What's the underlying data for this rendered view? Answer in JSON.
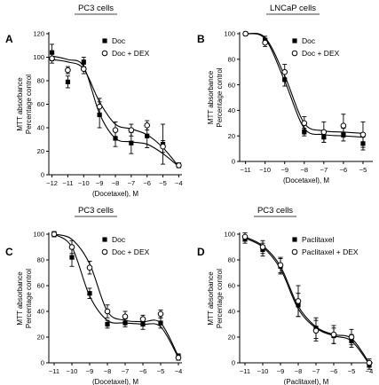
{
  "chart_data": [
    {
      "type": "scatter",
      "panel": "A",
      "title": "PC3 cells",
      "xlabel": "(Docetaxel), M",
      "ylabel_lines": [
        "MTT absorbance",
        "Percentage control"
      ],
      "x_ticks": [
        -12,
        -11,
        -10,
        -9,
        -8,
        -7,
        -6,
        -5,
        -4
      ],
      "y_ticks": [
        0,
        20,
        40,
        60,
        80,
        100,
        120
      ],
      "xlim": [
        -12.2,
        -3.8
      ],
      "ylim": [
        0,
        120
      ],
      "legend_position": "top-right",
      "series": [
        {
          "name": "Doc",
          "marker": "filled-square",
          "x": [
            -12,
            -11,
            -10,
            -9,
            -8,
            -7,
            -6,
            -5,
            -4
          ],
          "y": [
            104,
            79,
            96,
            51,
            31,
            27,
            33,
            26,
            8
          ],
          "err": [
            7,
            5,
            4,
            11,
            7,
            9,
            10,
            17,
            2
          ],
          "fit": [
            101,
            98,
            92,
            52,
            31,
            28,
            26,
            18,
            7
          ]
        },
        {
          "name": "Doc + DEX",
          "marker": "open-circle",
          "x": [
            -12,
            -11,
            -10,
            -9,
            -8,
            -7,
            -6,
            -5,
            -4
          ],
          "y": [
            99,
            89,
            90,
            58,
            38,
            38,
            42,
            24,
            8
          ],
          "err": [
            4,
            3,
            4,
            7,
            7,
            5,
            4,
            5,
            2
          ],
          "fit": [
            98,
            96,
            90,
            62,
            43,
            39,
            34,
            23,
            7
          ]
        }
      ]
    },
    {
      "type": "scatter",
      "panel": "B",
      "title": "LNCaP cells",
      "xlabel": "(Docetaxel), M",
      "ylabel_lines": [
        "MTT absorbance",
        "Percentage control"
      ],
      "x_ticks": [
        -11,
        -10,
        -9,
        -8,
        -7,
        -6,
        -5
      ],
      "y_ticks": [
        0,
        20,
        40,
        60,
        80,
        100
      ],
      "xlim": [
        -11.3,
        -4.5
      ],
      "ylim": [
        0,
        100
      ],
      "legend_position": "top-right",
      "series": [
        {
          "name": "Doc",
          "marker": "filled-square",
          "x": [
            -11,
            -10,
            -9,
            -8,
            -7,
            -6,
            -5
          ],
          "y": [
            100,
            95,
            64,
            23,
            19,
            21,
            14
          ],
          "err": [
            1,
            3,
            5,
            3,
            4,
            5,
            5
          ],
          "fit": [
            100,
            96,
            63,
            26,
            21,
            20,
            19
          ]
        },
        {
          "name": "Doc + DEX",
          "marker": "open-circle",
          "x": [
            -11,
            -10,
            -9,
            -8,
            -7,
            -6,
            -5
          ],
          "y": [
            100,
            93,
            70,
            30,
            23,
            28,
            21
          ],
          "err": [
            1,
            3,
            6,
            5,
            8,
            9,
            10
          ],
          "fit": [
            100,
            97,
            67,
            30,
            24,
            23,
            22
          ]
        }
      ]
    },
    {
      "type": "scatter",
      "panel": "C",
      "title": "PC3 cells",
      "xlabel": "(Docetaxel), M",
      "ylabel_lines": [
        "MTT absorbance",
        "Percentage control"
      ],
      "x_ticks": [
        -11,
        -10,
        -9,
        -8,
        -7,
        -6,
        -5,
        -4
      ],
      "y_ticks": [
        0,
        20,
        40,
        60,
        80,
        100
      ],
      "xlim": [
        -11.3,
        -3.8
      ],
      "ylim": [
        0,
        100
      ],
      "legend_position": "top-right",
      "series": [
        {
          "name": "Doc",
          "marker": "filled-square",
          "x": [
            -11,
            -10,
            -9,
            -8,
            -7,
            -6,
            -5,
            -4
          ],
          "y": [
            100,
            82,
            54,
            30,
            31,
            30,
            31,
            5
          ],
          "err": [
            2,
            7,
            4,
            3,
            3,
            4,
            4,
            2
          ],
          "fit": [
            100,
            90,
            52,
            33,
            31,
            30,
            28,
            4
          ]
        },
        {
          "name": "Doc + DEX",
          "marker": "open-circle",
          "x": [
            -11,
            -10,
            -9,
            -8,
            -7,
            -6,
            -5,
            -4
          ],
          "y": [
            100,
            90,
            74,
            40,
            36,
            34,
            38,
            4
          ],
          "err": [
            2,
            5,
            5,
            5,
            4,
            3,
            3,
            2
          ],
          "fit": [
            100,
            96,
            77,
            40,
            33,
            32,
            31,
            5
          ]
        }
      ]
    },
    {
      "type": "scatter",
      "panel": "D",
      "title": "PC3 cells",
      "xlabel": "(Paclitaxel), M",
      "ylabel_lines": [
        "MTT absorbance",
        "Percentage control"
      ],
      "x_ticks": [
        -11,
        -10,
        -9,
        -8,
        -7,
        -6,
        -5,
        -4
      ],
      "y_ticks": [
        0,
        20,
        40,
        60,
        80,
        100
      ],
      "xlim": [
        -11.3,
        -3.8
      ],
      "ylim": [
        0,
        100
      ],
      "legend_position": "top-right",
      "series": [
        {
          "name": "Paclitaxel",
          "marker": "filled-square",
          "x": [
            -11,
            -10,
            -9,
            -8,
            -7,
            -6,
            -5,
            -4
          ],
          "y": [
            96,
            88,
            75,
            45,
            27,
            21,
            17,
            -2
          ],
          "err": [
            3,
            5,
            6,
            9,
            8,
            6,
            5,
            3
          ],
          "fit": [
            97,
            90,
            73,
            42,
            27,
            21,
            17,
            -1
          ]
        },
        {
          "name": "Paclitaxel + DEX",
          "marker": "open-circle",
          "x": [
            -11,
            -10,
            -9,
            -8,
            -7,
            -6,
            -5,
            -4
          ],
          "y": [
            98,
            90,
            76,
            48,
            25,
            22,
            20,
            0
          ],
          "err": [
            3,
            5,
            6,
            12,
            8,
            7,
            6,
            3
          ],
          "fit": [
            98,
            91,
            75,
            44,
            28,
            22,
            19,
            0
          ]
        }
      ]
    }
  ]
}
